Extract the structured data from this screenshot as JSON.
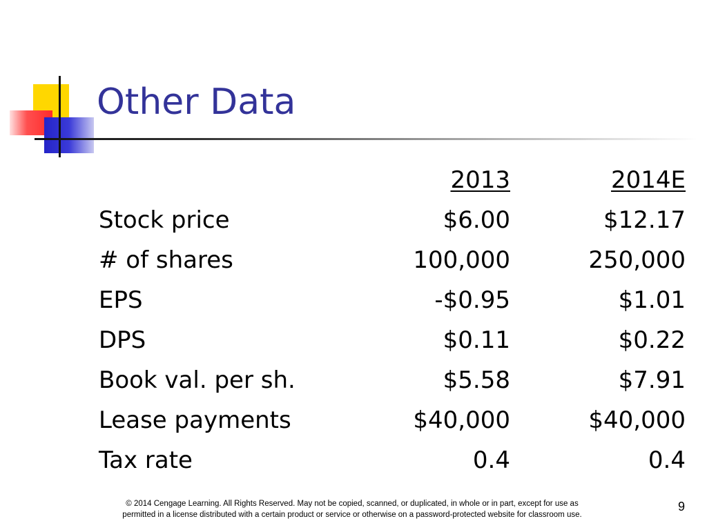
{
  "slide": {
    "title": "Other Data",
    "table": {
      "headers": {
        "year_1": "2013",
        "year_2": "2014E"
      },
      "rows": [
        {
          "label": "Stock price",
          "year_1": "$6.00",
          "year_2": "$12.17"
        },
        {
          "label": "# of shares",
          "year_1": "100,000",
          "year_2": "250,000"
        },
        {
          "label": "EPS",
          "year_1": "-$0.95",
          "year_2": "$1.01"
        },
        {
          "label": "DPS",
          "year_1": "$0.11",
          "year_2": "$0.22"
        },
        {
          "label": "Book val. per sh.",
          "year_1": "$5.58",
          "year_2": "$7.91"
        },
        {
          "label": "Lease payments",
          "year_1": "$40,000",
          "year_2": "$40,000"
        },
        {
          "label": "Tax rate",
          "year_1": "0.4",
          "year_2": "0.4"
        }
      ]
    },
    "footer": {
      "line_1": "© 2014 Cengage Learning. All Rights Reserved. May not be copied, scanned, or duplicated, in whole or in part, except for use as",
      "line_2": "permitted in a license distributed with a certain product or service or otherwise on a password-protected website for classroom use."
    },
    "page_number": "9"
  },
  "colors": {
    "title": "#333399",
    "accent_yellow": "#ffd700",
    "accent_red": "#ff2a2a",
    "accent_blue": "#2424c8"
  }
}
